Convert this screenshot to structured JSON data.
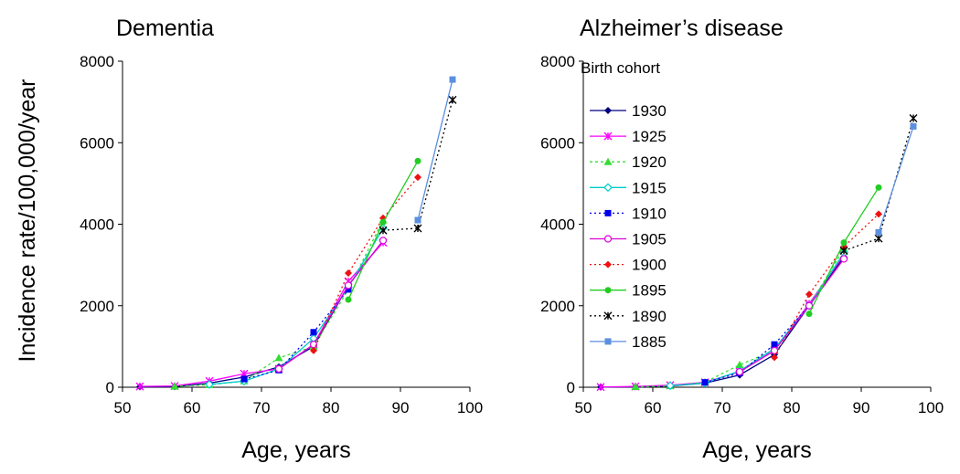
{
  "chart_data": [
    {
      "type": "line",
      "title": "Dementia",
      "xlabel": "Age, years",
      "ylabel": "Incidence rate/100,000/year",
      "xlim": [
        50,
        100
      ],
      "ylim": [
        0,
        8000
      ],
      "xticks": [
        50,
        60,
        70,
        80,
        90,
        100
      ],
      "yticks": [
        0,
        2000,
        4000,
        6000,
        8000
      ],
      "series": [
        {
          "name": "1930",
          "x": [
            52.5,
            57.5,
            62.5,
            67.5,
            72.5,
            77.5,
            82.5,
            87.5
          ],
          "values": [
            10,
            15,
            100,
            250,
            500,
            1000,
            2500,
            3600
          ]
        },
        {
          "name": "1925",
          "x": [
            52.5,
            57.5,
            62.5,
            67.5,
            72.5,
            77.5,
            82.5,
            87.5
          ],
          "values": [
            20,
            30,
            150,
            330,
            450,
            1050,
            2600,
            3550
          ]
        },
        {
          "name": "1920",
          "x": [
            57.5,
            62.5,
            67.5,
            72.5,
            77.5,
            82.5,
            87.5
          ],
          "values": [
            20,
            60,
            150,
            720,
            1000,
            2400,
            4100
          ]
        },
        {
          "name": "1915",
          "x": [
            62.5,
            67.5,
            72.5,
            77.5,
            82.5,
            87.5
          ],
          "values": [
            70,
            150,
            450,
            1200,
            2450,
            3900
          ]
        },
        {
          "name": "1910",
          "x": [
            67.5,
            72.5,
            77.5,
            82.5
          ],
          "values": [
            200,
            420,
            1350,
            2400
          ]
        },
        {
          "name": "1905",
          "x": [
            72.5,
            77.5,
            82.5,
            87.5
          ],
          "values": [
            450,
            1050,
            2500,
            3600
          ]
        },
        {
          "name": "1900",
          "x": [
            77.5,
            82.5,
            87.5,
            92.5
          ],
          "values": [
            900,
            2800,
            4150,
            5150
          ]
        },
        {
          "name": "1895",
          "x": [
            82.5,
            87.5,
            92.5
          ],
          "values": [
            2150,
            4050,
            5550
          ]
        },
        {
          "name": "1890",
          "x": [
            87.5,
            92.5,
            97.5
          ],
          "values": [
            3850,
            3900,
            7050
          ]
        },
        {
          "name": "1885",
          "x": [
            92.5,
            97.5
          ],
          "values": [
            4100,
            7550
          ]
        }
      ]
    },
    {
      "type": "line",
      "title": "Alzheimer’s disease",
      "xlabel": "Age, years",
      "ylabel": "",
      "legend_title": "Birth cohort",
      "legend_position": "left-inside",
      "xlim": [
        50,
        100
      ],
      "ylim": [
        0,
        8000
      ],
      "xticks": [
        50,
        60,
        70,
        80,
        90,
        100
      ],
      "yticks": [
        0,
        2000,
        4000,
        6000,
        8000
      ],
      "series": [
        {
          "name": "1930",
          "x": [
            52.5,
            57.5,
            62.5,
            67.5,
            72.5,
            77.5,
            82.5,
            87.5
          ],
          "values": [
            5,
            10,
            30,
            100,
            300,
            800,
            2000,
            3200
          ]
        },
        {
          "name": "1925",
          "x": [
            52.5,
            57.5,
            62.5,
            67.5,
            72.5,
            77.5,
            82.5,
            87.5
          ],
          "values": [
            5,
            20,
            50,
            120,
            380,
            900,
            2050,
            3250
          ]
        },
        {
          "name": "1920",
          "x": [
            57.5,
            62.5,
            67.5,
            72.5,
            77.5,
            82.5,
            87.5
          ],
          "values": [
            10,
            30,
            120,
            550,
            900,
            2000,
            3400
          ]
        },
        {
          "name": "1915",
          "x": [
            62.5,
            67.5,
            72.5,
            77.5,
            82.5,
            87.5
          ],
          "values": [
            40,
            100,
            400,
            950,
            2000,
            3300
          ]
        },
        {
          "name": "1910",
          "x": [
            67.5,
            72.5,
            77.5,
            82.5
          ],
          "values": [
            120,
            350,
            1050,
            2000
          ]
        },
        {
          "name": "1905",
          "x": [
            72.5,
            77.5,
            82.5,
            87.5
          ],
          "values": [
            380,
            900,
            2000,
            3150
          ]
        },
        {
          "name": "1900",
          "x": [
            77.5,
            82.5,
            87.5,
            92.5
          ],
          "values": [
            730,
            2280,
            3450,
            4250
          ]
        },
        {
          "name": "1895",
          "x": [
            82.5,
            87.5,
            92.5
          ],
          "values": [
            1800,
            3550,
            4900
          ]
        },
        {
          "name": "1890",
          "x": [
            87.5,
            92.5,
            97.5
          ],
          "values": [
            3350,
            3650,
            6600
          ]
        },
        {
          "name": "1885",
          "x": [
            92.5,
            97.5
          ],
          "values": [
            3800,
            6400
          ]
        }
      ]
    }
  ],
  "styles": {
    "1930": {
      "color": "#000080",
      "dash": "",
      "marker": "diamond"
    },
    "1925": {
      "color": "#ff00ff",
      "dash": "",
      "marker": "asterisk"
    },
    "1920": {
      "color": "#33dd33",
      "dash": "3,3",
      "marker": "triangle"
    },
    "1915": {
      "color": "#00cccc",
      "dash": "",
      "marker": "open-diamond"
    },
    "1910": {
      "color": "#0000ee",
      "dash": "2,3",
      "marker": "square"
    },
    "1905": {
      "color": "#dd00dd",
      "dash": "",
      "marker": "open-circle"
    },
    "1900": {
      "color": "#ee1111",
      "dash": "2,3",
      "marker": "diamond"
    },
    "1895": {
      "color": "#22cc22",
      "dash": "",
      "marker": "circle"
    },
    "1890": {
      "color": "#000000",
      "dash": "2,3",
      "marker": "asterisk"
    },
    "1885": {
      "color": "#5b8fdf",
      "dash": "",
      "marker": "square"
    }
  }
}
